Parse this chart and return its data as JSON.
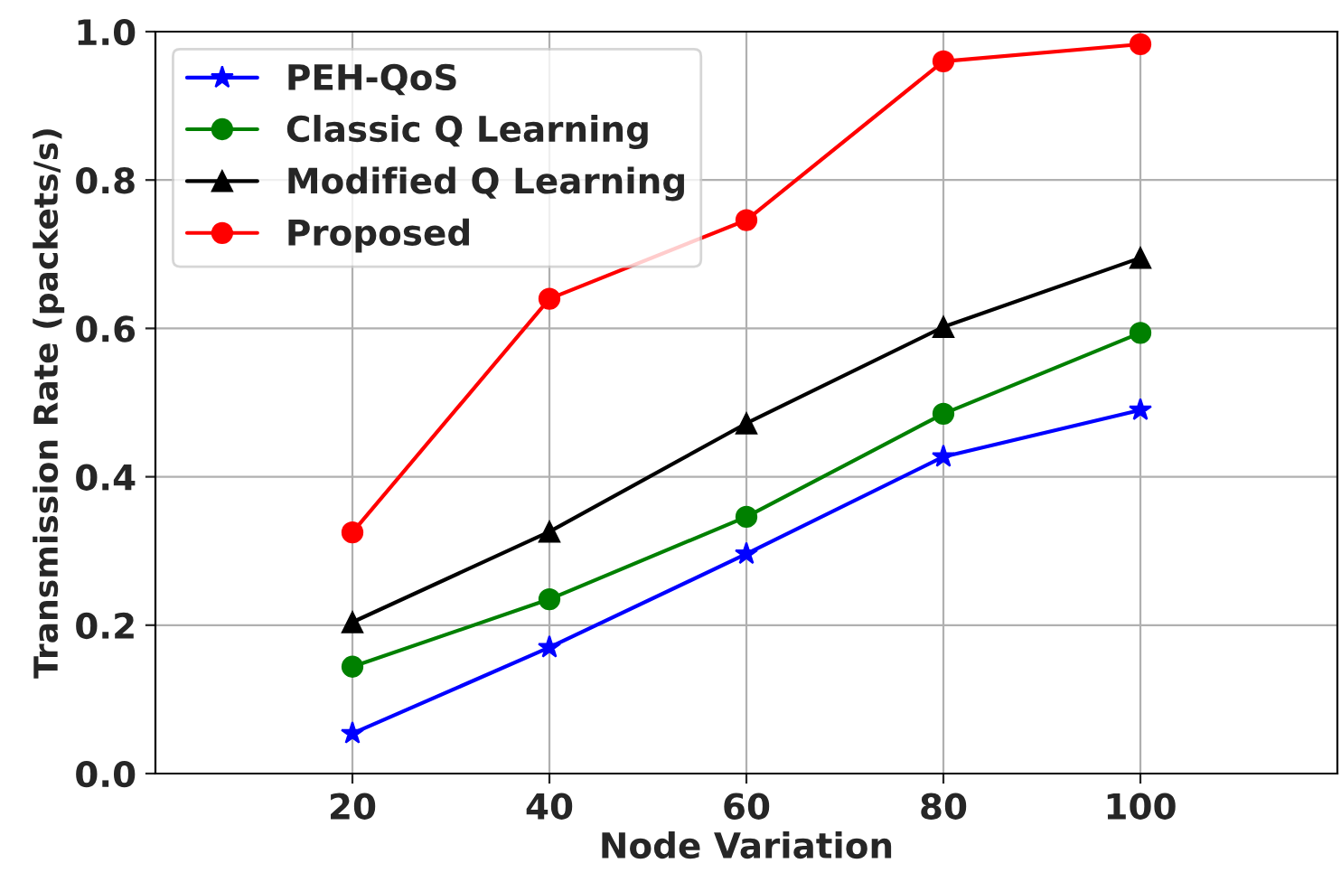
{
  "chart_data": {
    "type": "line",
    "xlabel": "Node Variation",
    "ylabel": "Transmission Rate (packets/s)",
    "x": [
      20,
      40,
      60,
      80,
      100
    ],
    "series": [
      {
        "name": "PEH-QoS",
        "color": "#0000ff",
        "marker": "star",
        "values": [
          0.054,
          0.17,
          0.296,
          0.427,
          0.49
        ]
      },
      {
        "name": "Classic Q Learning",
        "color": "#008000",
        "marker": "circle",
        "values": [
          0.144,
          0.235,
          0.346,
          0.485,
          0.594
        ]
      },
      {
        "name": "Modified Q Learning",
        "color": "#000000",
        "marker": "triangle",
        "values": [
          0.204,
          0.326,
          0.472,
          0.602,
          0.695
        ]
      },
      {
        "name": "Proposed",
        "color": "#ff0000",
        "marker": "circle",
        "values": [
          0.325,
          0.64,
          0.746,
          0.96,
          0.983
        ]
      }
    ],
    "xlim": [
      0,
      120
    ],
    "xticks": [
      20,
      40,
      60,
      80,
      100
    ],
    "ylim": [
      0,
      1.0
    ],
    "yticks": [
      {
        "value": 0,
        "label": "0.0"
      },
      {
        "value": 0.2,
        "label": "0.2"
      },
      {
        "value": 0.4,
        "label": "0.4"
      },
      {
        "value": 0.6,
        "label": "0.6"
      },
      {
        "value": 0.8,
        "label": "0.8"
      },
      {
        "value": 1.0,
        "label": "1.0"
      }
    ],
    "grid": true,
    "legend": "top left",
    "line_style": "solid"
  }
}
